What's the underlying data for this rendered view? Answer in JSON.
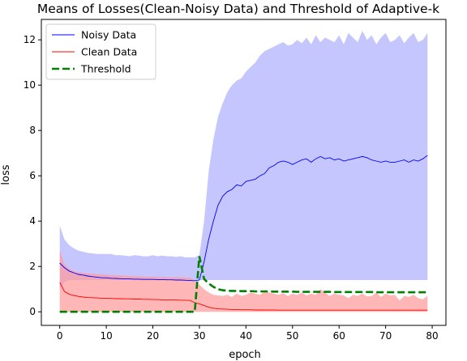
{
  "chart_data": {
    "type": "line",
    "title": "Means of Losses(Clean-Noisy Data) and Threshold of Adaptive-k",
    "xlabel": "epoch",
    "ylabel": "loss",
    "xlim": [
      -3.95,
      82.95
    ],
    "ylim": [
      -0.6,
      12.9
    ],
    "xticks": [
      0,
      10,
      20,
      30,
      40,
      50,
      60,
      70,
      80
    ],
    "yticks": [
      0,
      2,
      4,
      6,
      8,
      10,
      12
    ],
    "grid": false,
    "legend": "top-left",
    "x": [
      0,
      1,
      2,
      3,
      4,
      5,
      6,
      7,
      8,
      9,
      10,
      11,
      12,
      13,
      14,
      15,
      16,
      17,
      18,
      19,
      20,
      21,
      22,
      23,
      24,
      25,
      26,
      27,
      28,
      29,
      30,
      31,
      32,
      33,
      34,
      35,
      36,
      37,
      38,
      39,
      40,
      41,
      42,
      43,
      44,
      45,
      46,
      47,
      48,
      49,
      50,
      51,
      52,
      53,
      54,
      55,
      56,
      57,
      58,
      59,
      60,
      61,
      62,
      63,
      64,
      65,
      66,
      67,
      68,
      69,
      70,
      71,
      72,
      73,
      74,
      75,
      76,
      77,
      78,
      79
    ],
    "series": [
      {
        "name": "Noisy  Data",
        "color": "#0000ff",
        "fill": "#b0b0ff",
        "values": [
          2.15,
          1.95,
          1.8,
          1.72,
          1.65,
          1.62,
          1.58,
          1.55,
          1.53,
          1.5,
          1.5,
          1.48,
          1.47,
          1.46,
          1.45,
          1.45,
          1.44,
          1.44,
          1.43,
          1.43,
          1.43,
          1.42,
          1.42,
          1.41,
          1.41,
          1.4,
          1.4,
          1.39,
          1.38,
          1.37,
          1.4,
          2.2,
          3.2,
          4.0,
          4.7,
          5.1,
          5.3,
          5.4,
          5.6,
          5.55,
          5.75,
          5.8,
          5.85,
          6.0,
          6.1,
          6.35,
          6.45,
          6.6,
          6.65,
          6.6,
          6.5,
          6.6,
          6.7,
          6.75,
          6.6,
          6.75,
          6.85,
          6.75,
          6.8,
          6.7,
          6.75,
          6.65,
          6.7,
          6.75,
          6.8,
          6.85,
          6.8,
          6.7,
          6.65,
          6.6,
          6.65,
          6.6,
          6.6,
          6.65,
          6.7,
          6.6,
          6.7,
          6.65,
          6.75,
          6.9
        ],
        "lower": [
          1.0,
          1.3,
          1.4,
          1.4,
          1.4,
          1.4,
          1.4,
          1.4,
          1.4,
          1.4,
          1.4,
          1.4,
          1.4,
          1.4,
          1.4,
          1.4,
          1.4,
          1.4,
          1.4,
          1.4,
          1.4,
          1.4,
          1.4,
          1.4,
          1.4,
          1.4,
          1.4,
          1.4,
          1.4,
          1.4,
          1.4,
          1.4,
          1.4,
          1.4,
          1.4,
          1.4,
          1.4,
          1.4,
          1.4,
          1.4,
          1.4,
          1.4,
          1.4,
          1.4,
          1.4,
          1.4,
          1.4,
          1.4,
          1.4,
          1.4,
          1.4,
          1.4,
          1.4,
          1.4,
          1.4,
          1.4,
          1.4,
          1.4,
          1.4,
          1.4,
          1.4,
          1.4,
          1.4,
          1.4,
          1.4,
          1.4,
          1.4,
          1.4,
          1.4,
          1.4,
          1.4,
          1.4,
          1.4,
          1.4,
          1.4,
          1.4,
          1.4,
          1.4,
          1.4,
          1.4
        ],
        "upper": [
          3.8,
          3.2,
          2.95,
          2.8,
          2.7,
          2.65,
          2.6,
          2.58,
          2.55,
          2.55,
          2.55,
          2.55,
          2.5,
          2.5,
          2.48,
          2.45,
          2.5,
          2.48,
          2.45,
          2.45,
          2.5,
          2.45,
          2.48,
          2.45,
          2.45,
          2.42,
          2.45,
          2.4,
          2.4,
          2.4,
          2.5,
          4.0,
          6.2,
          7.6,
          8.6,
          9.2,
          9.7,
          10.0,
          10.2,
          10.3,
          10.6,
          10.8,
          11.0,
          11.3,
          11.5,
          11.6,
          11.7,
          11.8,
          11.9,
          11.75,
          11.8,
          12.0,
          11.85,
          12.1,
          11.8,
          12.2,
          11.9,
          12.1,
          12.0,
          11.9,
          12.2,
          11.8,
          12.3,
          12.1,
          11.9,
          12.4,
          12.0,
          12.2,
          11.8,
          12.1,
          12.3,
          11.9,
          12.0,
          12.2,
          11.85,
          12.1,
          12.3,
          11.9,
          12.0,
          12.3
        ]
      },
      {
        "name": "Clean Data",
        "color": "#ff0000",
        "fill": "#ff9a9a",
        "values": [
          1.3,
          0.9,
          0.78,
          0.72,
          0.68,
          0.65,
          0.63,
          0.62,
          0.61,
          0.6,
          0.6,
          0.59,
          0.58,
          0.58,
          0.57,
          0.57,
          0.56,
          0.56,
          0.55,
          0.55,
          0.54,
          0.54,
          0.53,
          0.53,
          0.52,
          0.52,
          0.51,
          0.51,
          0.5,
          0.4,
          0.35,
          0.28,
          0.2,
          0.16,
          0.13,
          0.12,
          0.11,
          0.1,
          0.1,
          0.09,
          0.09,
          0.09,
          0.08,
          0.08,
          0.08,
          0.08,
          0.08,
          0.07,
          0.07,
          0.07,
          0.07,
          0.07,
          0.07,
          0.07,
          0.07,
          0.07,
          0.07,
          0.07,
          0.07,
          0.07,
          0.07,
          0.07,
          0.07,
          0.07,
          0.07,
          0.07,
          0.07,
          0.07,
          0.07,
          0.07,
          0.07,
          0.07,
          0.07,
          0.07,
          0.07,
          0.07,
          0.07,
          0.07,
          0.07,
          0.07
        ],
        "lower": [
          0.0,
          0.0,
          0.0,
          0.0,
          0.0,
          0.0,
          0.0,
          0.0,
          0.0,
          0.0,
          0.0,
          0.0,
          0.0,
          0.0,
          0.0,
          0.0,
          0.0,
          0.0,
          0.0,
          0.0,
          0.0,
          0.0,
          0.0,
          0.0,
          0.0,
          0.0,
          0.0,
          0.0,
          0.0,
          0.0,
          0.0,
          0.0,
          0.0,
          0.0,
          0.0,
          0.0,
          0.0,
          0.0,
          0.0,
          0.0,
          0.0,
          0.0,
          0.0,
          0.0,
          0.0,
          0.0,
          0.0,
          0.0,
          0.0,
          0.0,
          0.0,
          0.0,
          0.0,
          0.0,
          0.0,
          0.0,
          0.0,
          0.0,
          0.0,
          0.0,
          0.0,
          0.0,
          0.0,
          0.0,
          0.0,
          0.0,
          0.0,
          0.0,
          0.0,
          0.0,
          0.0,
          0.0,
          0.0,
          0.0,
          0.0,
          0.0,
          0.0,
          0.0,
          0.0,
          0.0
        ],
        "upper": [
          2.7,
          2.1,
          1.9,
          1.8,
          1.75,
          1.72,
          1.7,
          1.68,
          1.66,
          1.65,
          1.63,
          1.62,
          1.61,
          1.6,
          1.59,
          1.58,
          1.57,
          1.56,
          1.55,
          1.55,
          1.55,
          1.54,
          1.54,
          1.53,
          1.53,
          1.52,
          1.52,
          1.51,
          1.5,
          1.4,
          1.2,
          1.0,
          0.85,
          0.75,
          0.72,
          0.7,
          0.75,
          0.65,
          0.8,
          0.7,
          0.75,
          0.85,
          0.8,
          0.75,
          0.9,
          0.85,
          0.8,
          0.75,
          0.82,
          0.7,
          0.8,
          0.75,
          0.85,
          0.72,
          0.8,
          0.75,
          1.0,
          0.85,
          0.7,
          0.8,
          0.75,
          0.72,
          0.6,
          0.75,
          0.7,
          0.8,
          0.68,
          0.7,
          0.85,
          0.65,
          0.8,
          0.72,
          0.75,
          0.5,
          0.7,
          0.65,
          0.75,
          0.6,
          0.55,
          0.7
        ]
      },
      {
        "name": "Threshold",
        "color": "#008000",
        "dashed": true,
        "values": [
          0,
          0,
          0,
          0,
          0,
          0,
          0,
          0,
          0,
          0,
          0,
          0,
          0,
          0,
          0,
          0,
          0,
          0,
          0,
          0,
          0,
          0,
          0,
          0,
          0,
          0,
          0,
          0,
          0,
          0,
          2.45,
          1.45,
          1.25,
          1.1,
          1.0,
          0.95,
          0.93,
          0.92,
          0.92,
          0.91,
          0.91,
          0.91,
          0.9,
          0.9,
          0.9,
          0.9,
          0.89,
          0.89,
          0.89,
          0.89,
          0.89,
          0.88,
          0.88,
          0.88,
          0.88,
          0.88,
          0.88,
          0.88,
          0.88,
          0.87,
          0.87,
          0.87,
          0.87,
          0.87,
          0.87,
          0.87,
          0.87,
          0.87,
          0.86,
          0.86,
          0.86,
          0.86,
          0.86,
          0.86,
          0.86,
          0.86,
          0.86,
          0.86,
          0.86,
          0.86
        ]
      }
    ]
  }
}
